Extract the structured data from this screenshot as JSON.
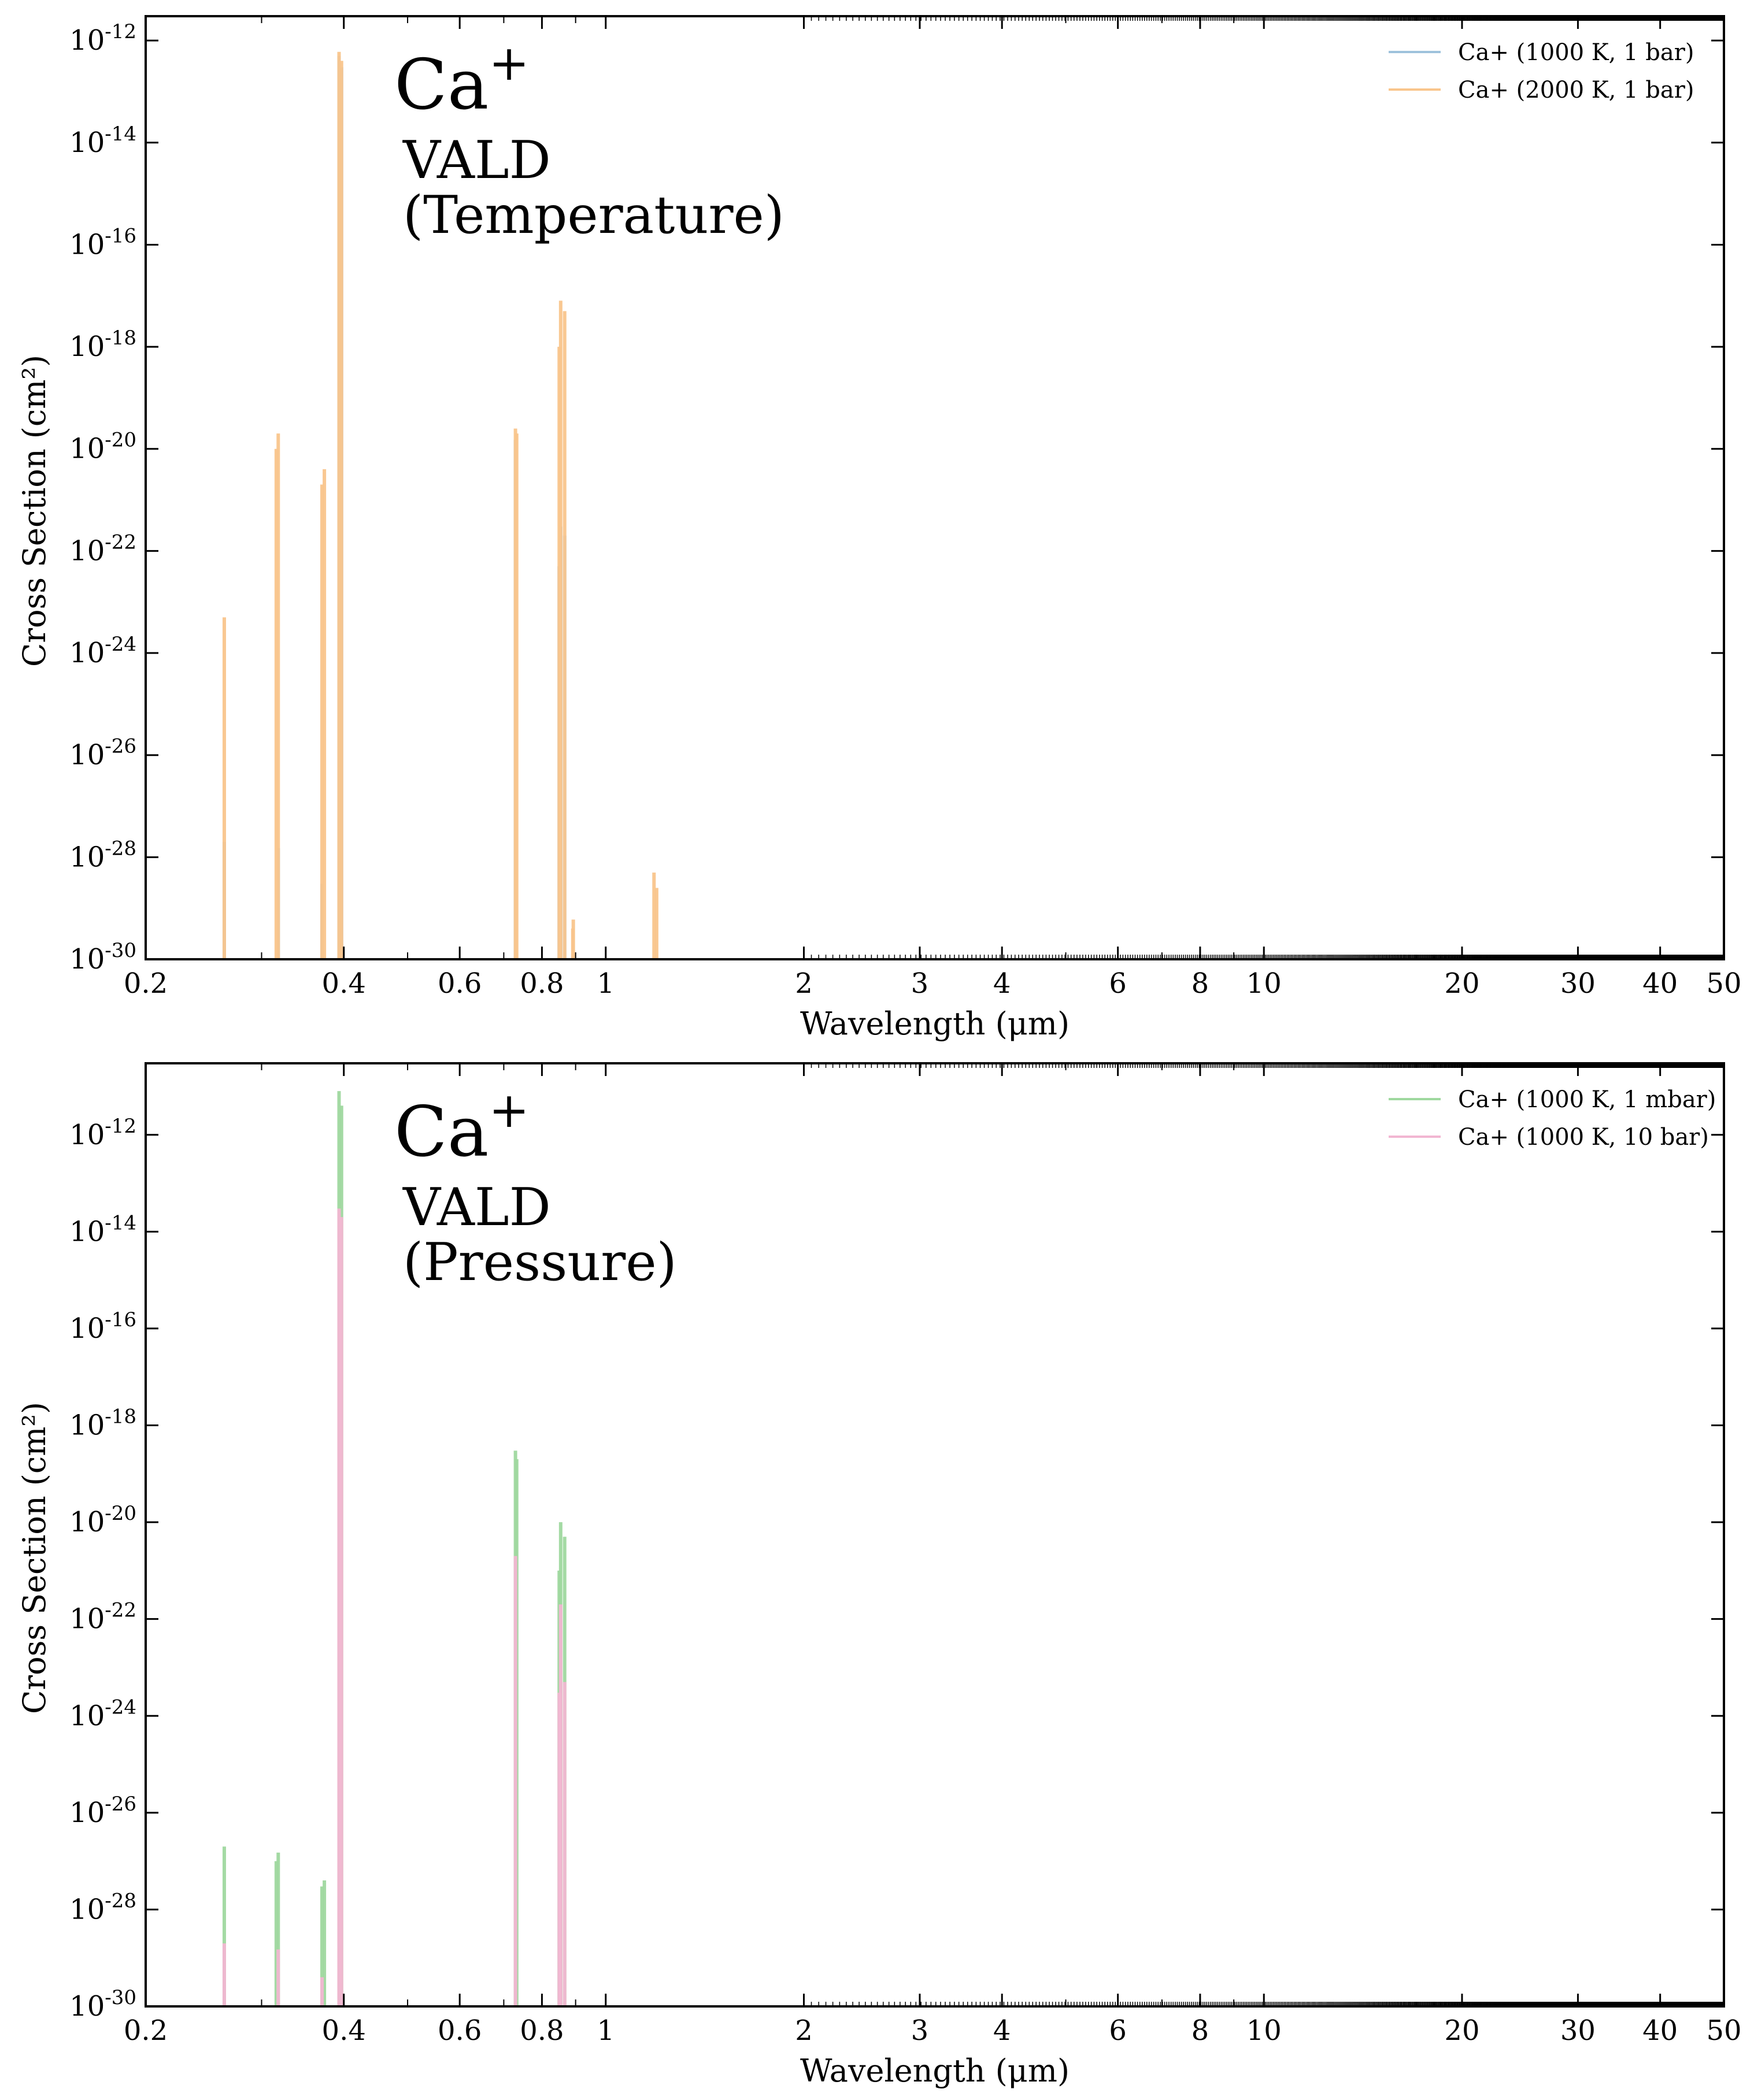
{
  "chart_data": [
    {
      "type": "line",
      "xlabel": "Wavelength (μm)",
      "ylabel": "Cross Section (cm²)",
      "xscale": "log",
      "yscale": "log",
      "xlim": [
        0.2,
        50
      ],
      "ylim": [
        1e-30,
        3e-12
      ],
      "x_ticks": [
        0.2,
        0.4,
        0.6,
        0.8,
        1,
        2,
        3,
        4,
        6,
        8,
        10,
        20,
        30,
        40,
        50
      ],
      "x_tick_labels": [
        "0.2",
        "0.4",
        "0.6",
        "0.8",
        "1",
        "2",
        "3",
        "4",
        "6",
        "8",
        "10",
        "20",
        "30",
        "40",
        "50"
      ],
      "y_ticks": [
        -30,
        -28,
        -26,
        -24,
        -22,
        -20,
        -18,
        -16,
        -14,
        -12
      ],
      "annotation": {
        "species_base": "Ca",
        "species_sup": "+",
        "database": "VALD",
        "subtitle": "(Temperature)"
      },
      "legend_position": "top-right",
      "grid": false,
      "series": [
        {
          "name": "Ca+ (1000 K, 1 bar)",
          "color": "#9ec2dc",
          "peaks": [
            {
              "x": 0.2633,
              "y": 2e-28
            },
            {
              "x": 0.318,
              "y": 1.5e-28
            },
            {
              "x": 0.3706,
              "y": 3e-29
            },
            {
              "x": 0.3934,
              "y": 5e-13
            },
            {
              "x": 0.3968,
              "y": 3e-13
            },
            {
              "x": 0.7292,
              "y": 1.5e-20
            },
            {
              "x": 0.8498,
              "y": 5e-23
            },
            {
              "x": 0.8542,
              "y": 3e-22
            },
            {
              "x": 0.8662,
              "y": 2e-22
            }
          ]
        },
        {
          "name": "Ca+ (2000 K, 1 bar)",
          "color": "#f9c58c",
          "peaks": [
            {
              "x": 0.2633,
              "y": 5e-24
            },
            {
              "x": 0.3158,
              "y": 1e-20
            },
            {
              "x": 0.318,
              "y": 2e-20
            },
            {
              "x": 0.3706,
              "y": 2e-21
            },
            {
              "x": 0.3737,
              "y": 4e-21
            },
            {
              "x": 0.3934,
              "y": 6e-13
            },
            {
              "x": 0.3968,
              "y": 4e-13
            },
            {
              "x": 0.7292,
              "y": 2.5e-20
            },
            {
              "x": 0.7324,
              "y": 2e-20
            },
            {
              "x": 0.8498,
              "y": 1e-18
            },
            {
              "x": 0.8542,
              "y": 8e-18
            },
            {
              "x": 0.8662,
              "y": 5e-18
            },
            {
              "x": 0.8927,
              "y": 6e-30
            },
            {
              "x": 0.8912,
              "y": 4e-30
            },
            {
              "x": 1.184,
              "y": 5e-29
            },
            {
              "x": 1.195,
              "y": 2.5e-29
            }
          ]
        }
      ]
    },
    {
      "type": "line",
      "xlabel": "Wavelength (μm)",
      "ylabel": "Cross Section (cm²)",
      "xscale": "log",
      "yscale": "log",
      "xlim": [
        0.2,
        50
      ],
      "ylim": [
        1e-30,
        3e-11
      ],
      "x_ticks": [
        0.2,
        0.4,
        0.6,
        0.8,
        1,
        2,
        3,
        4,
        6,
        8,
        10,
        20,
        30,
        40,
        50
      ],
      "x_tick_labels": [
        "0.2",
        "0.4",
        "0.6",
        "0.8",
        "1",
        "2",
        "3",
        "4",
        "6",
        "8",
        "10",
        "20",
        "30",
        "40",
        "50"
      ],
      "y_ticks": [
        -30,
        -28,
        -26,
        -24,
        -22,
        -20,
        -18,
        -16,
        -14,
        -12
      ],
      "annotation": {
        "species_base": "Ca",
        "species_sup": "+",
        "database": "VALD",
        "subtitle": "(Pressure)"
      },
      "legend_position": "top-right",
      "grid": false,
      "series": [
        {
          "name": "Ca+ (1000 K, 1 mbar)",
          "color": "#9fd89f",
          "peaks": [
            {
              "x": 0.2633,
              "y": 2e-27
            },
            {
              "x": 0.3158,
              "y": 1e-27
            },
            {
              "x": 0.318,
              "y": 1.5e-27
            },
            {
              "x": 0.3706,
              "y": 3e-28
            },
            {
              "x": 0.3737,
              "y": 4e-28
            },
            {
              "x": 0.3934,
              "y": 8e-12
            },
            {
              "x": 0.3968,
              "y": 4e-12
            },
            {
              "x": 0.7292,
              "y": 3e-19
            },
            {
              "x": 0.7324,
              "y": 2e-19
            },
            {
              "x": 0.8498,
              "y": 1e-21
            },
            {
              "x": 0.8542,
              "y": 1e-20
            },
            {
              "x": 0.8662,
              "y": 5e-21
            }
          ]
        },
        {
          "name": "Ca+ (1000 K, 10 bar)",
          "color": "#f2b6d2",
          "peaks": [
            {
              "x": 0.2633,
              "y": 2e-29
            },
            {
              "x": 0.318,
              "y": 1.5e-29
            },
            {
              "x": 0.3706,
              "y": 4e-30
            },
            {
              "x": 0.3934,
              "y": 3e-14
            },
            {
              "x": 0.3968,
              "y": 2e-14
            },
            {
              "x": 0.7292,
              "y": 2e-21
            },
            {
              "x": 0.8542,
              "y": 2e-22
            },
            {
              "x": 0.8498,
              "y": 3e-24
            },
            {
              "x": 0.8662,
              "y": 5e-24
            }
          ]
        }
      ]
    }
  ]
}
